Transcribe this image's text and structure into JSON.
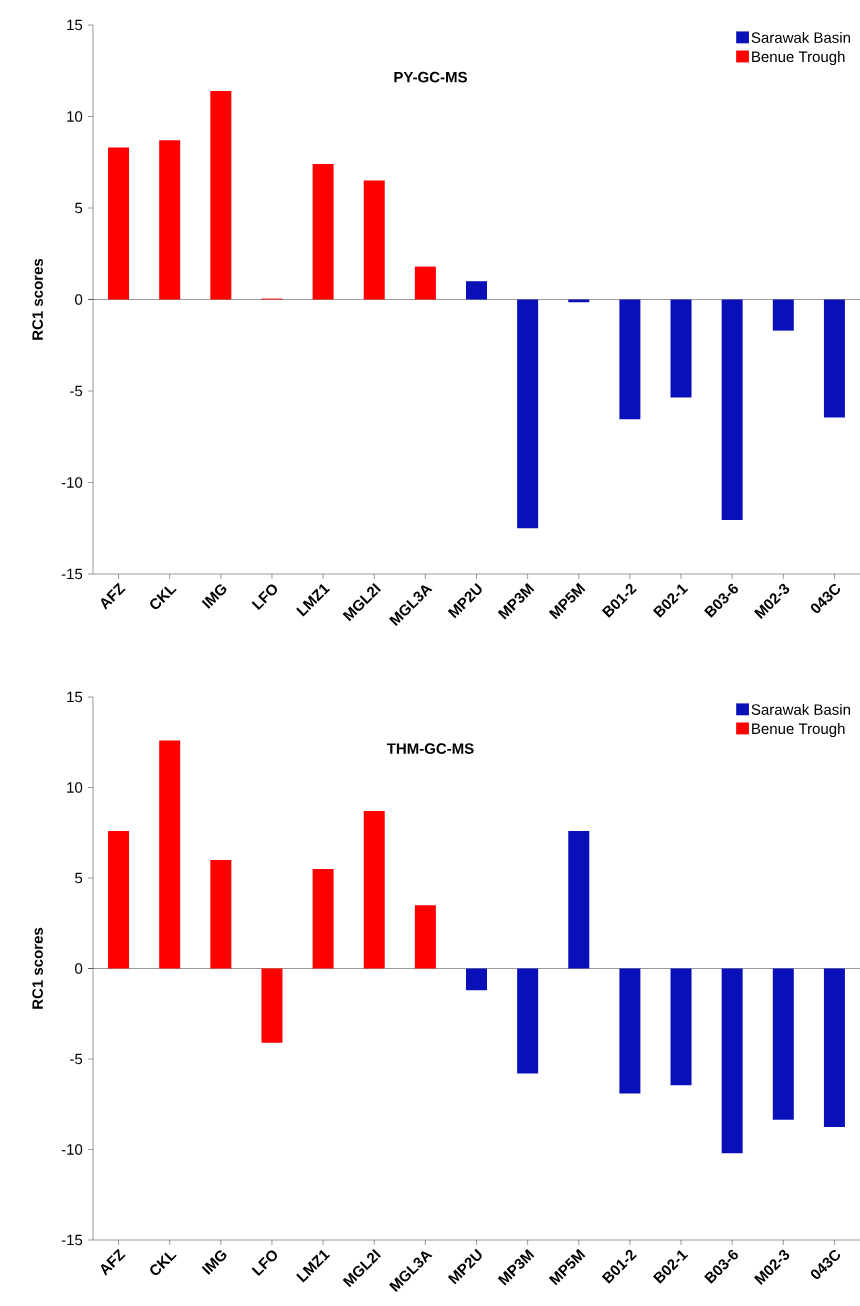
{
  "chart_data": [
    {
      "type": "bar",
      "title": "PY-GC-MS",
      "ylabel": "RC1 scores",
      "categories": [
        "AFZ",
        "CKL",
        "IMG",
        "LFO",
        "LMZ1",
        "MGL2I",
        "MGL3A",
        "MP2U",
        "MP3M",
        "MP5M",
        "B01-2",
        "B02-1",
        "B03-6",
        "M02-3",
        "043C"
      ],
      "series": [
        {
          "name": "Sarawak Basin",
          "color": "#0a10b8",
          "values": [
            null,
            null,
            null,
            null,
            null,
            null,
            null,
            1.0,
            -12.5,
            -0.15,
            -6.55,
            -5.35,
            -12.05,
            -1.7,
            -6.45
          ]
        },
        {
          "name": "Benue Trough",
          "color": "#ff0000",
          "values": [
            8.3,
            8.7,
            11.4,
            0.05,
            7.4,
            6.5,
            1.8,
            null,
            null,
            null,
            null,
            null,
            null,
            null,
            null
          ]
        }
      ],
      "ylim": [
        -15,
        15
      ],
      "yticks": [
        -15,
        -10,
        -5,
        0,
        5,
        10,
        15
      ],
      "legend": "top right"
    },
    {
      "type": "bar",
      "title": "THM-GC-MS",
      "ylabel": "RC1 scores",
      "categories": [
        "AFZ",
        "CKL",
        "IMG",
        "LFO",
        "LMZ1",
        "MGL2I",
        "MGL3A",
        "MP2U",
        "MP3M",
        "MP5M",
        "B01-2",
        "B02-1",
        "B03-6",
        "M02-3",
        "043C"
      ],
      "series": [
        {
          "name": "Sarawak Basin",
          "color": "#0a10b8",
          "values": [
            null,
            null,
            null,
            null,
            null,
            null,
            null,
            -1.2,
            -5.8,
            7.6,
            -6.9,
            -6.45,
            -10.2,
            -8.35,
            -8.75
          ]
        },
        {
          "name": "Benue Trough",
          "color": "#ff0000",
          "values": [
            7.6,
            12.6,
            6.0,
            -4.1,
            5.5,
            8.7,
            3.5,
            null,
            null,
            null,
            null,
            null,
            null,
            null,
            null
          ]
        }
      ],
      "ylim": [
        -15,
        15
      ],
      "yticks": [
        -15,
        -10,
        -5,
        0,
        5,
        10,
        15
      ],
      "legend": "top right"
    }
  ]
}
